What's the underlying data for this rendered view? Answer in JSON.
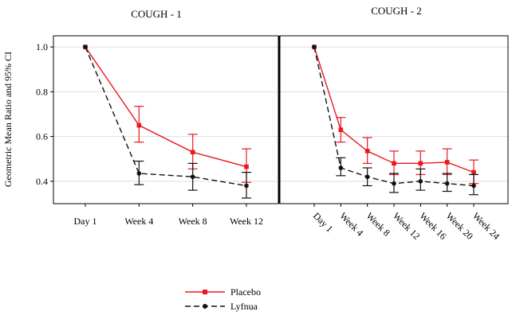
{
  "chart_data": [
    {
      "type": "line",
      "title": "COUGH - 1",
      "ylabel": "Geometric Mean Ratio and 95% CI",
      "xlabel": "",
      "categories": [
        "Day 1",
        "Week 4",
        "Week 8",
        "Week 12"
      ],
      "ylim": [
        0.3,
        1.05
      ],
      "yticks": [
        "0.4",
        "0.6",
        "0.8",
        "1.0"
      ],
      "grid": true,
      "series": [
        {
          "name": "Placebo",
          "color": "#e8191c",
          "dash": "solid",
          "marker": "square",
          "values": [
            1.0,
            0.65,
            0.53,
            0.465
          ],
          "lower": [
            null,
            0.575,
            0.455,
            0.395
          ],
          "upper": [
            null,
            0.735,
            0.61,
            0.545
          ]
        },
        {
          "name": "Lyfnua",
          "color": "#111111",
          "dash": "dashed",
          "marker": "circle",
          "values": [
            1.0,
            0.435,
            0.42,
            0.38
          ],
          "lower": [
            null,
            0.385,
            0.36,
            0.325
          ],
          "upper": [
            null,
            0.49,
            0.48,
            0.44
          ]
        }
      ]
    },
    {
      "type": "line",
      "title": "COUGH - 2",
      "xlabel": "",
      "categories": [
        "Day 1",
        "Week 4",
        "Week 8",
        "Week 12",
        "Week 16",
        "Week 20",
        "Week 24"
      ],
      "ylim": [
        0.3,
        1.05
      ],
      "grid": true,
      "series": [
        {
          "name": "Placebo",
          "color": "#e8191c",
          "dash": "solid",
          "marker": "square",
          "values": [
            1.0,
            0.63,
            0.535,
            0.48,
            0.48,
            0.485,
            0.44
          ],
          "lower": [
            null,
            0.575,
            0.48,
            0.43,
            0.43,
            0.43,
            0.39
          ],
          "upper": [
            null,
            0.685,
            0.595,
            0.535,
            0.535,
            0.545,
            0.495
          ]
        },
        {
          "name": "Lyfnua",
          "color": "#111111",
          "dash": "dashed",
          "marker": "circle",
          "values": [
            1.0,
            0.46,
            0.42,
            0.39,
            0.4,
            0.39,
            0.38
          ],
          "lower": [
            null,
            0.425,
            0.38,
            0.35,
            0.36,
            0.355,
            0.34
          ],
          "upper": [
            null,
            0.505,
            0.46,
            0.435,
            0.455,
            0.435,
            0.43
          ]
        }
      ]
    }
  ],
  "legend": {
    "placement": "bottom-center",
    "items": [
      {
        "label": "Placebo",
        "color": "#e8191c",
        "dash": "solid",
        "marker": "square"
      },
      {
        "label": "Lyfnua",
        "color": "#111111",
        "dash": "dashed",
        "marker": "circle"
      }
    ]
  }
}
